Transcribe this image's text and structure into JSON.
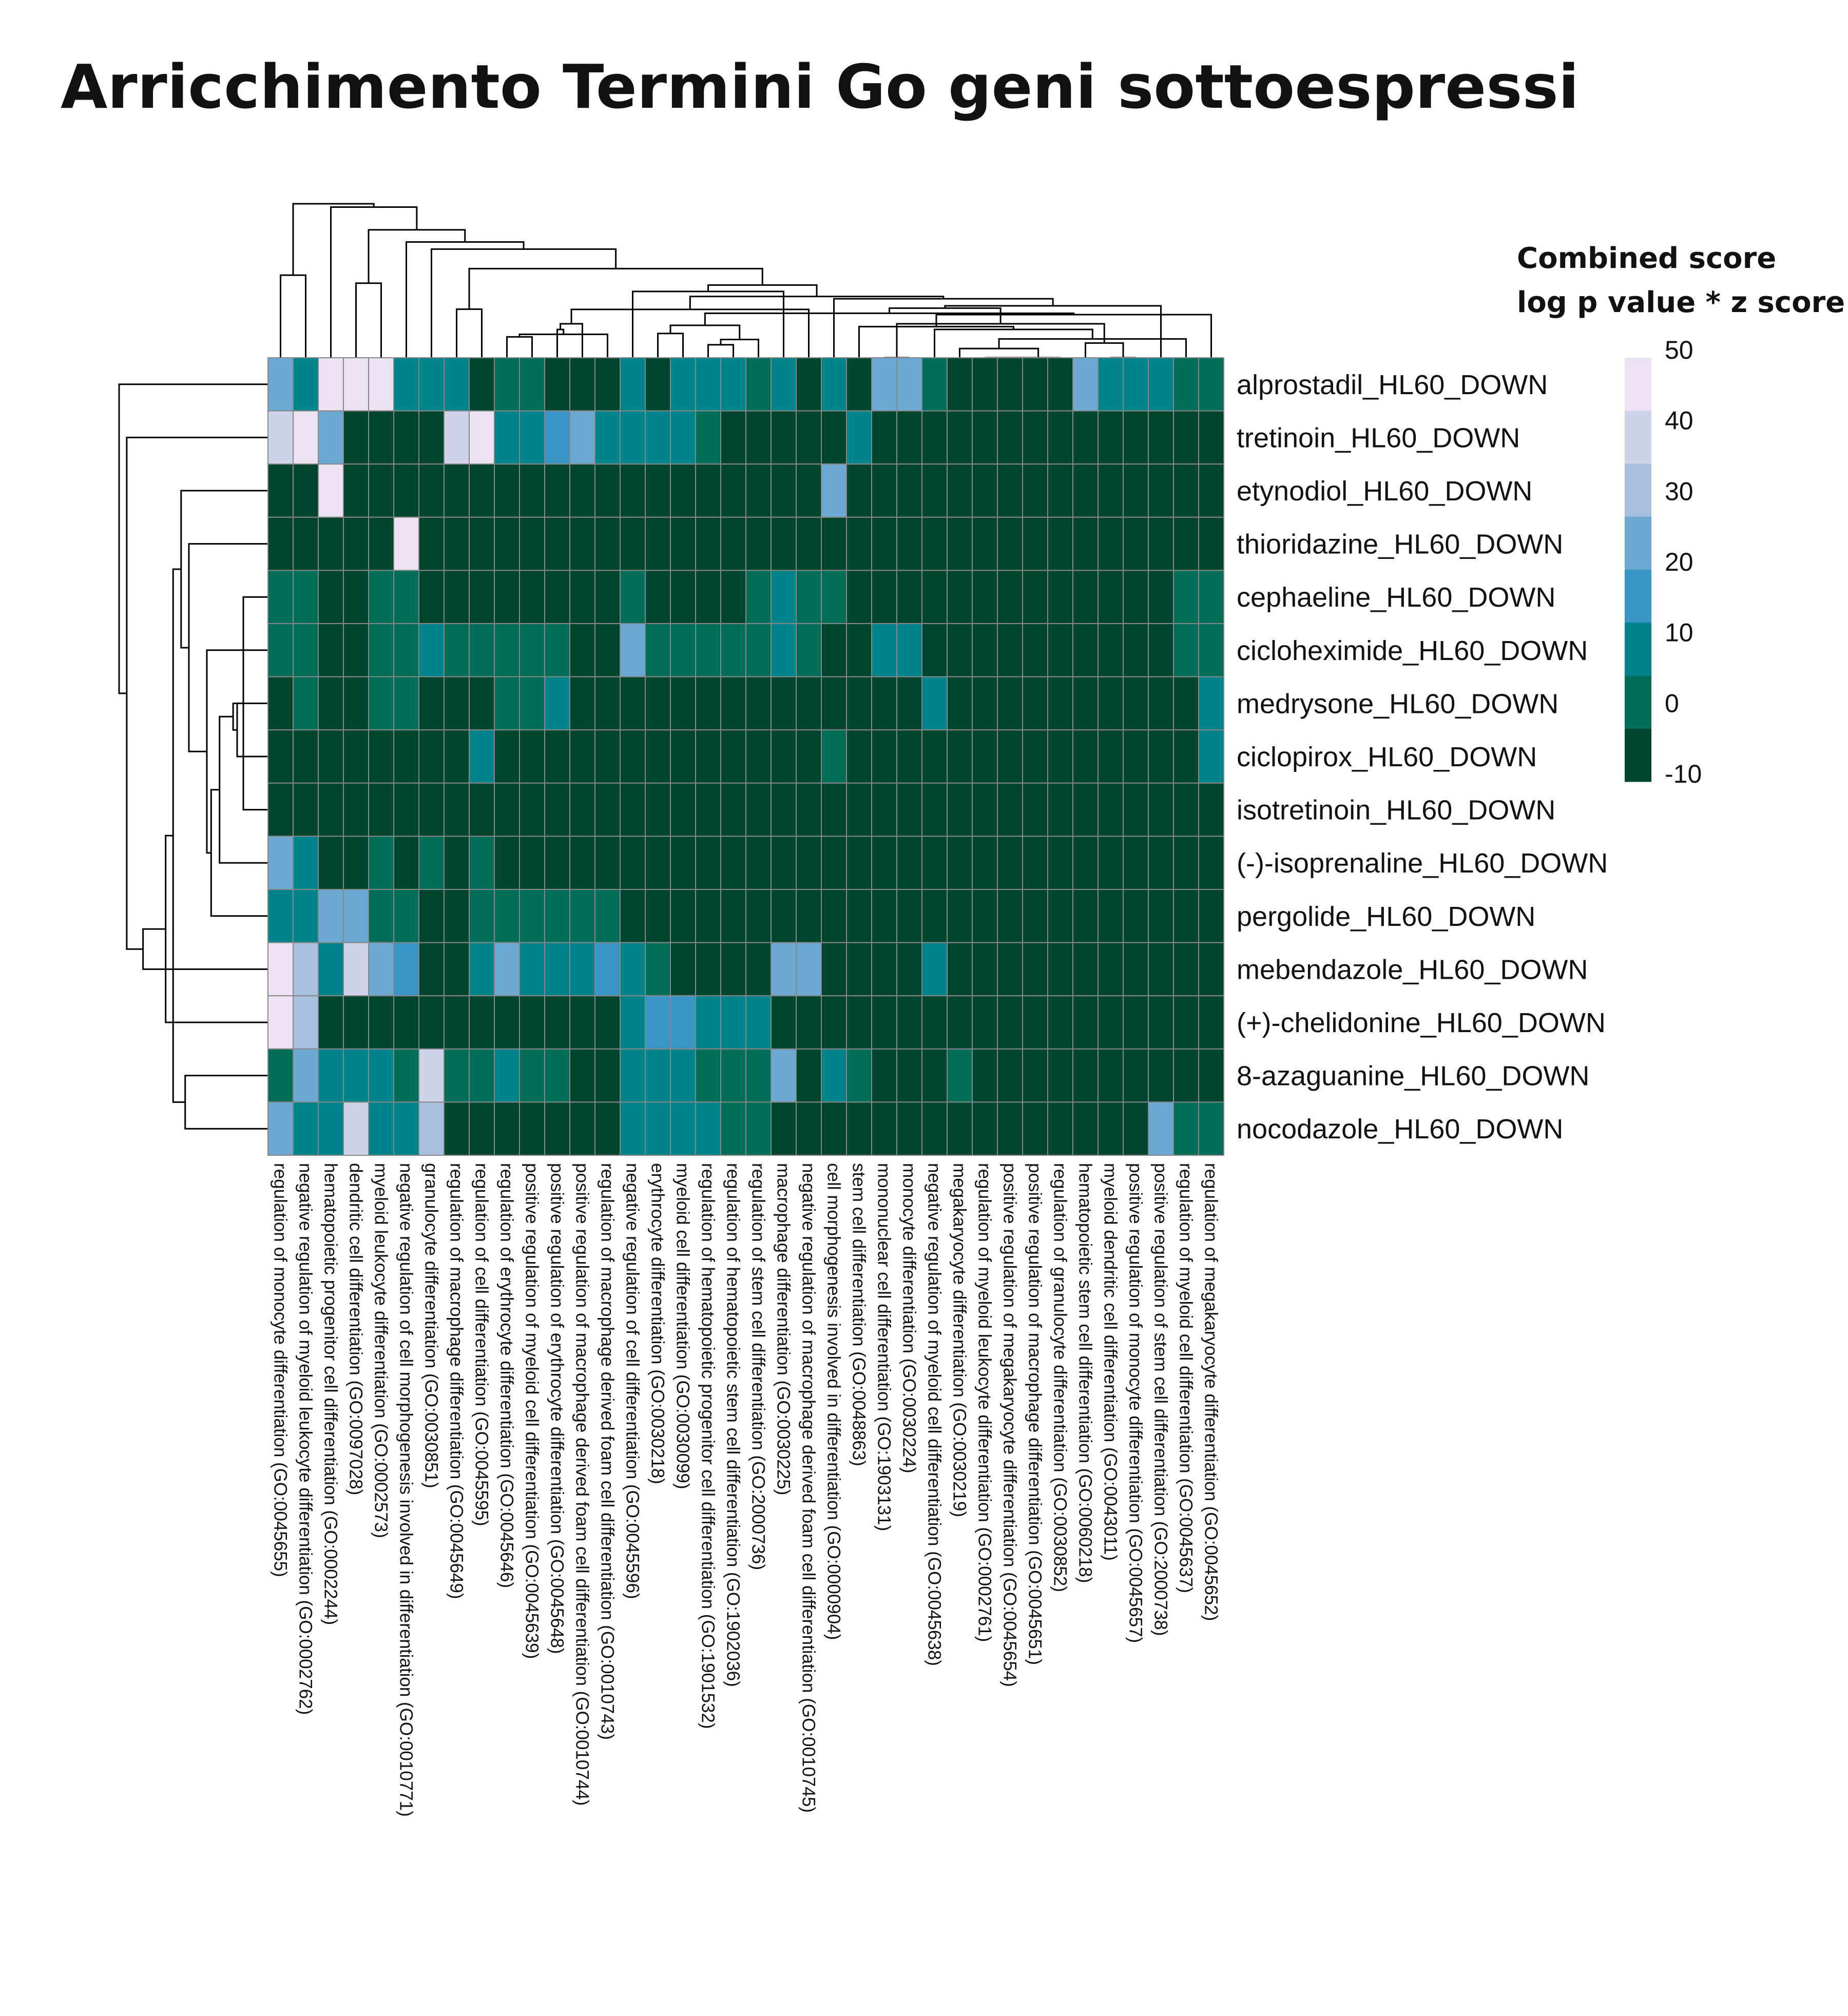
{
  "chart_data": {
    "type": "heatmap",
    "title": "Arricchimento Termini Go geni sottoespressi",
    "legend": {
      "title_lines": [
        "Combined score",
        "log p value * z score"
      ],
      "ticks": [
        50,
        40,
        30,
        20,
        10,
        0,
        -10
      ],
      "tick_labels": [
        "50",
        "40",
        "30",
        "20",
        "10",
        "0",
        "-10"
      ],
      "range": [
        -10,
        50
      ],
      "placement": "top-right"
    },
    "palette": [
      "#00452f",
      "#006e58",
      "#00848c",
      "#3a94c6",
      "#6ba9d3",
      "#a8bfdd",
      "#cfd3e8",
      "#ece2f1"
    ],
    "cell_border_color": "#888888",
    "rows": [
      "alprostadil_HL60_DOWN",
      "tretinoin_HL60_DOWN",
      "etynodiol_HL60_DOWN",
      "thioridazine_HL60_DOWN",
      "cephaeline_HL60_DOWN",
      "cicloheximide_HL60_DOWN",
      "medrysone_HL60_DOWN",
      "ciclopirox_HL60_DOWN",
      "isotretinoin_HL60_DOWN",
      "(-)-isoprenaline_HL60_DOWN",
      "pergolide_HL60_DOWN",
      "mebendazole_HL60_DOWN",
      "(+)-chelidonine_HL60_DOWN",
      "8-azaguanine_HL60_DOWN",
      "nocodazole_HL60_DOWN"
    ],
    "columns": [
      "regulation of monocyte differentiation (GO:0045655)",
      "negative regulation of myeloid leukocyte differentiation (GO:0002762)",
      "hematopoietic progenitor cell differentiation (GO:0002244)",
      "dendritic cell differentiation (GO:0097028)",
      "myeloid leukocyte differentiation (GO:0002573)",
      "negative regulation of cell morphogenesis involved in differentiation (GO:0010771)",
      "granulocyte differentiation (GO:0030851)",
      "regulation of macrophage differentiation (GO:0045649)",
      "regulation of cell differentiation (GO:0045595)",
      "regulation of erythrocyte differentiation (GO:0045646)",
      "positive regulation of myeloid cell differentiation (GO:0045639)",
      "positive regulation of erythrocyte differentiation (GO:0045648)",
      "positive regulation of macrophage derived foam cell differentiation (GO:0010744)",
      "regulation of macrophage derived foam cell differentiation (GO:0010743)",
      "negative regulation of cell differentiation (GO:0045596)",
      "erythrocyte differentiation (GO:0030218)",
      "myeloid cell differentiation (GO:0030099)",
      "regulation of hematopoietic progenitor cell differentiation (GO:1901532)",
      "regulation of hematopoietic stem cell differentiation (GO:1902036)",
      "regulation of stem cell differentiation (GO:2000736)",
      "macrophage differentiation (GO:0030225)",
      "negative regulation of macrophage derived foam cell differentiation (GO:0010745)",
      "cell morphogenesis involved in differentiation (GO:0000904)",
      "stem cell differentiation (GO:0048863)",
      "mononuclear cell differentiation (GO:1903131)",
      "monocyte differentiation (GO:0030224)",
      "negative regulation of myeloid cell differentiation (GO:0045638)",
      "megakaryocyte differentiation (GO:0030219)",
      "regulation of myeloid leukocyte differentiation (GO:0002761)",
      "positive regulation of megakaryocyte differentiation (GO:0045654)",
      "positive regulation of macrophage differentiation (GO:0045651)",
      "regulation of granulocyte differentiation (GO:0030852)",
      "hematopoietic stem cell differentiation (GO:0060218)",
      "myeloid dendritic cell differentiation (GO:0043011)",
      "positive regulation of monocyte differentiation (GO:0045657)",
      "positive regulation of stem cell differentiation (GO:2000738)",
      "regulation of myeloid cell differentiation (GO:0045637)",
      "regulation of megakaryocyte differentiation (GO:0045652)"
    ],
    "values": [
      [
        20,
        10,
        50,
        50,
        50,
        5,
        10,
        5,
        -5,
        0,
        0,
        -5,
        -5,
        -5,
        12,
        -5,
        5,
        5,
        5,
        0,
        10,
        -5,
        5,
        -5,
        25,
        25,
        0,
        -5,
        -5,
        -5,
        -5,
        -5,
        20,
        12,
        12,
        5,
        0,
        0
      ],
      [
        35,
        50,
        20,
        -5,
        -5,
        -5,
        -5,
        35,
        50,
        10,
        12,
        15,
        25,
        10,
        10,
        10,
        5,
        0,
        -5,
        -5,
        -5,
        -5,
        -5,
        10,
        -5,
        -5,
        -5,
        -5,
        -5,
        -5,
        -5,
        -5,
        -5,
        -5,
        -5,
        -5,
        -5,
        -5
      ],
      [
        -5,
        -5,
        50,
        -5,
        -5,
        -5,
        -5,
        -5,
        -5,
        -5,
        -5,
        -5,
        -5,
        -5,
        -5,
        -5,
        -5,
        -5,
        -5,
        -5,
        -5,
        -5,
        20,
        -5,
        -5,
        -5,
        -5,
        -5,
        -5,
        -5,
        -5,
        -5,
        -5,
        -5,
        -5,
        -5,
        -5,
        -5
      ],
      [
        -5,
        -5,
        -5,
        -5,
        -5,
        50,
        -5,
        -5,
        -5,
        -5,
        -5,
        -5,
        -5,
        -5,
        -5,
        -5,
        -5,
        -5,
        -5,
        -5,
        -5,
        -5,
        -5,
        -5,
        -5,
        -5,
        -5,
        -5,
        -5,
        -5,
        -5,
        -5,
        -5,
        -5,
        -5,
        -5,
        -5,
        -5
      ],
      [
        0,
        0,
        -5,
        -5,
        0,
        0,
        -5,
        -5,
        -5,
        -5,
        -5,
        -5,
        -5,
        -5,
        0,
        -5,
        -5,
        -5,
        -5,
        0,
        5,
        0,
        0,
        -5,
        -5,
        -5,
        -5,
        -5,
        -5,
        -5,
        -5,
        -5,
        -5,
        -5,
        -5,
        -5,
        0,
        0
      ],
      [
        0,
        0,
        -5,
        -5,
        0,
        0,
        10,
        0,
        0,
        0,
        0,
        0,
        -5,
        -5,
        20,
        0,
        0,
        0,
        0,
        0,
        10,
        0,
        -5,
        -5,
        10,
        10,
        -5,
        -5,
        -5,
        -5,
        -5,
        -5,
        -5,
        -5,
        -5,
        -5,
        0,
        0
      ],
      [
        -5,
        0,
        -5,
        -5,
        0,
        0,
        -5,
        -5,
        -5,
        0,
        0,
        10,
        -5,
        -5,
        -5,
        -5,
        -5,
        -5,
        -5,
        -5,
        -5,
        -5,
        -5,
        -5,
        -5,
        -5,
        5,
        -5,
        -5,
        -5,
        -5,
        -5,
        -5,
        -5,
        -5,
        -5,
        -5,
        10
      ],
      [
        -5,
        -5,
        -5,
        -5,
        -5,
        -5,
        -5,
        -5,
        10,
        -5,
        -5,
        -5,
        -5,
        -5,
        -5,
        -5,
        -5,
        -5,
        -5,
        -5,
        -5,
        -5,
        0,
        -5,
        -5,
        -5,
        -5,
        -5,
        -5,
        -5,
        -5,
        -5,
        -5,
        -5,
        -5,
        -5,
        -5,
        10
      ],
      [
        -5,
        -5,
        -5,
        -5,
        -5,
        -5,
        -5,
        -5,
        -5,
        -5,
        -5,
        -5,
        -5,
        -5,
        -5,
        -5,
        -5,
        -5,
        -5,
        -5,
        -5,
        -5,
        -5,
        -5,
        -5,
        -5,
        -5,
        -5,
        -5,
        -5,
        -5,
        -5,
        -5,
        -5,
        -5,
        -5,
        -5,
        -5
      ],
      [
        25,
        10,
        -5,
        -5,
        0,
        -5,
        0,
        -5,
        0,
        -5,
        -5,
        -5,
        -5,
        -5,
        -5,
        -5,
        -5,
        -5,
        -5,
        -5,
        -5,
        -5,
        -5,
        -5,
        -5,
        -5,
        -5,
        -5,
        -5,
        -5,
        -5,
        -5,
        -5,
        -5,
        -5,
        -5,
        -5,
        -5
      ],
      [
        10,
        5,
        20,
        20,
        0,
        0,
        -5,
        -5,
        0,
        0,
        0,
        0,
        0,
        0,
        -5,
        -5,
        -5,
        -5,
        -5,
        -5,
        -5,
        -5,
        -5,
        -5,
        -5,
        -5,
        -5,
        -5,
        -5,
        -5,
        -5,
        -5,
        -5,
        -5,
        -5,
        -5,
        -5,
        -5
      ],
      [
        50,
        30,
        10,
        35,
        20,
        15,
        -5,
        -5,
        5,
        20,
        10,
        10,
        10,
        15,
        5,
        0,
        -5,
        -5,
        -5,
        -5,
        20,
        25,
        -5,
        -5,
        -5,
        -5,
        5,
        -5,
        -5,
        -5,
        -5,
        -5,
        -5,
        -5,
        -5,
        -5,
        -5,
        -5
      ],
      [
        50,
        30,
        -5,
        -5,
        -5,
        -5,
        -5,
        -5,
        -5,
        -5,
        -5,
        -5,
        -5,
        -5,
        10,
        15,
        15,
        10,
        10,
        5,
        -5,
        -5,
        -5,
        -5,
        -5,
        -5,
        -5,
        -5,
        -5,
        -5,
        -5,
        -5,
        -5,
        -5,
        -5,
        -5,
        -5,
        -5
      ],
      [
        0,
        20,
        5,
        5,
        10,
        0,
        40,
        0,
        0,
        5,
        0,
        0,
        -5,
        -5,
        5,
        5,
        10,
        0,
        0,
        0,
        25,
        -5,
        5,
        0,
        -5,
        -5,
        -5,
        0,
        -5,
        -5,
        -5,
        -5,
        -5,
        -5,
        -5,
        -5,
        -5,
        -5
      ],
      [
        20,
        5,
        5,
        40,
        10,
        5,
        30,
        -5,
        -5,
        -5,
        -5,
        -5,
        -5,
        -5,
        5,
        5,
        5,
        5,
        0,
        0,
        -5,
        -5,
        -5,
        -5,
        -5,
        -5,
        -5,
        -5,
        -5,
        -5,
        -5,
        -5,
        -5,
        -5,
        -5,
        20,
        0,
        0
      ]
    ]
  }
}
